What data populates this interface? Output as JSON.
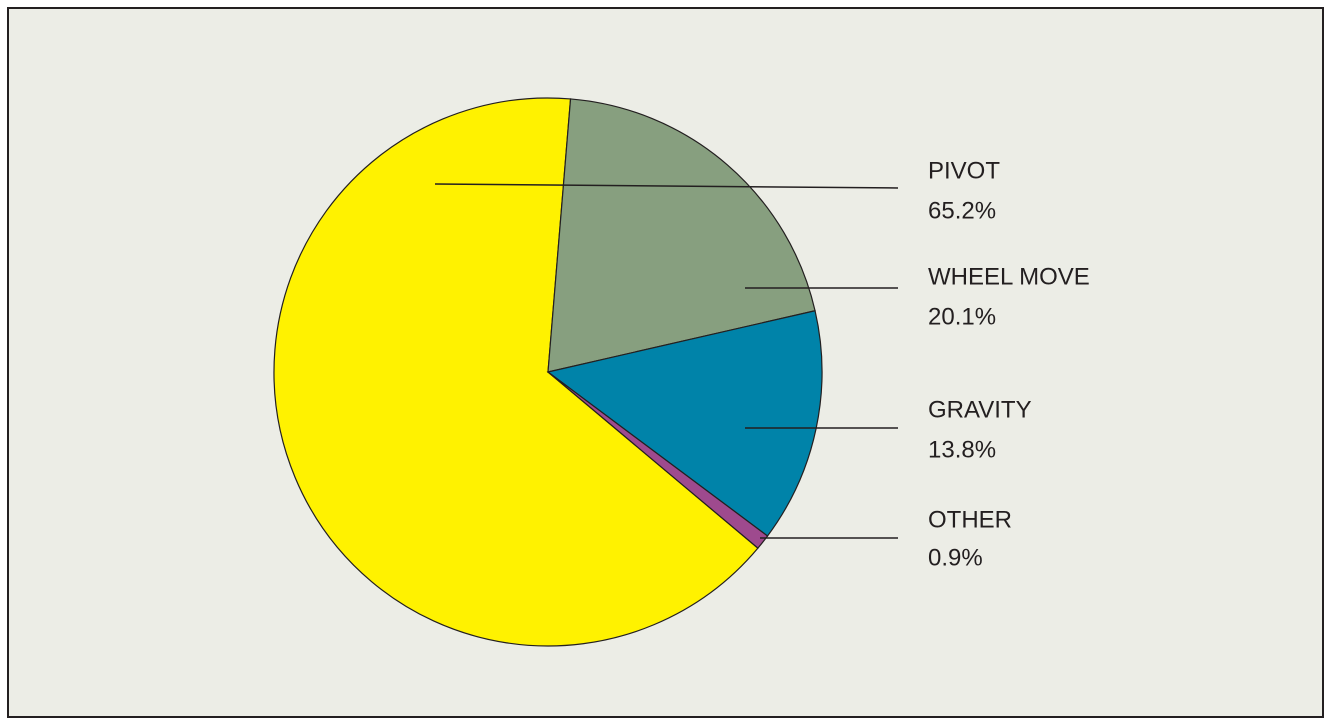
{
  "chart_data": {
    "type": "pie",
    "categories": [
      "PIVOT",
      "WHEEL MOVE",
      "GRAVITY",
      "OTHER"
    ],
    "values": [
      65.2,
      20.1,
      13.8,
      0.9
    ],
    "value_labels": [
      "65.2%",
      "20.1%",
      "13.8%",
      "0.9%"
    ],
    "colors": [
      "#fff200",
      "#879f7f",
      "#0083a9",
      "#9e4a8e"
    ]
  }
}
